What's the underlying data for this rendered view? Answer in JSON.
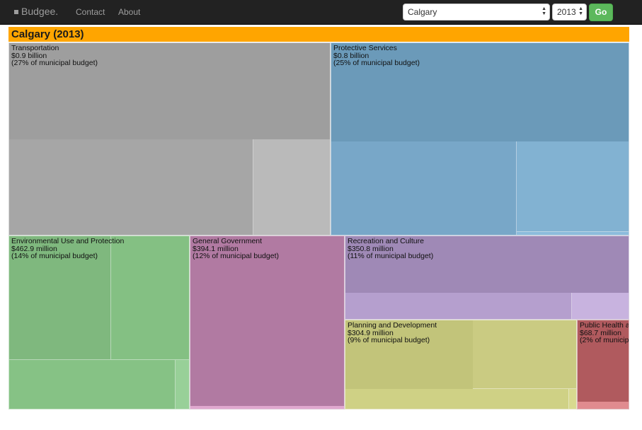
{
  "nav": {
    "brand": "Budgee.",
    "links": [
      "Contact",
      "About"
    ],
    "city": "Calgary",
    "year": "2013",
    "go_label": "Go"
  },
  "treemap": {
    "title": "Calgary (2013)",
    "categories": [
      {
        "name": "Transportation",
        "amount": "$0.9 billion",
        "share": "(27% of municipal budget)",
        "color": "#9e9e9e"
      },
      {
        "name": "Protective Services",
        "amount": "$0.8 billion",
        "share": "(25% of municipal budget)",
        "color": "#6b9ab9"
      },
      {
        "name": "Environmental Use and Protection",
        "amount": "$462.9 million",
        "share": "(14% of municipal budget)",
        "color": "#80bd80"
      },
      {
        "name": "General Government",
        "amount": "$394.1 million",
        "share": "(12% of municipal budget)",
        "color": "#b17aa2"
      },
      {
        "name": "Recreation and Culture",
        "amount": "$350.8 million",
        "share": "(11% of municipal budget)",
        "color": "#9f89b6"
      },
      {
        "name": "Planning and Development",
        "amount": "$304.9 million",
        "share": "(9% of municipal budget)",
        "color": "#c2c47a"
      },
      {
        "name": "Public Health a",
        "amount": "$68.7 million",
        "share": "(2% of municip",
        "color": "#b05a5e"
      }
    ]
  },
  "chart_data": {
    "type": "treemap",
    "title": "Calgary (2013)",
    "categories": [
      "Transportation",
      "Protective Services",
      "Environmental Use and Protection",
      "General Government",
      "Recreation and Culture",
      "Planning and Development",
      "Public Health a"
    ],
    "values": [
      "$0.9 billion",
      "$0.8 billion",
      "$462.9 million",
      "$394.1 million",
      "$350.8 million",
      "$304.9 million",
      "$68.7 million"
    ],
    "shares_percent": [
      27,
      25,
      14,
      12,
      11,
      9,
      2
    ]
  }
}
